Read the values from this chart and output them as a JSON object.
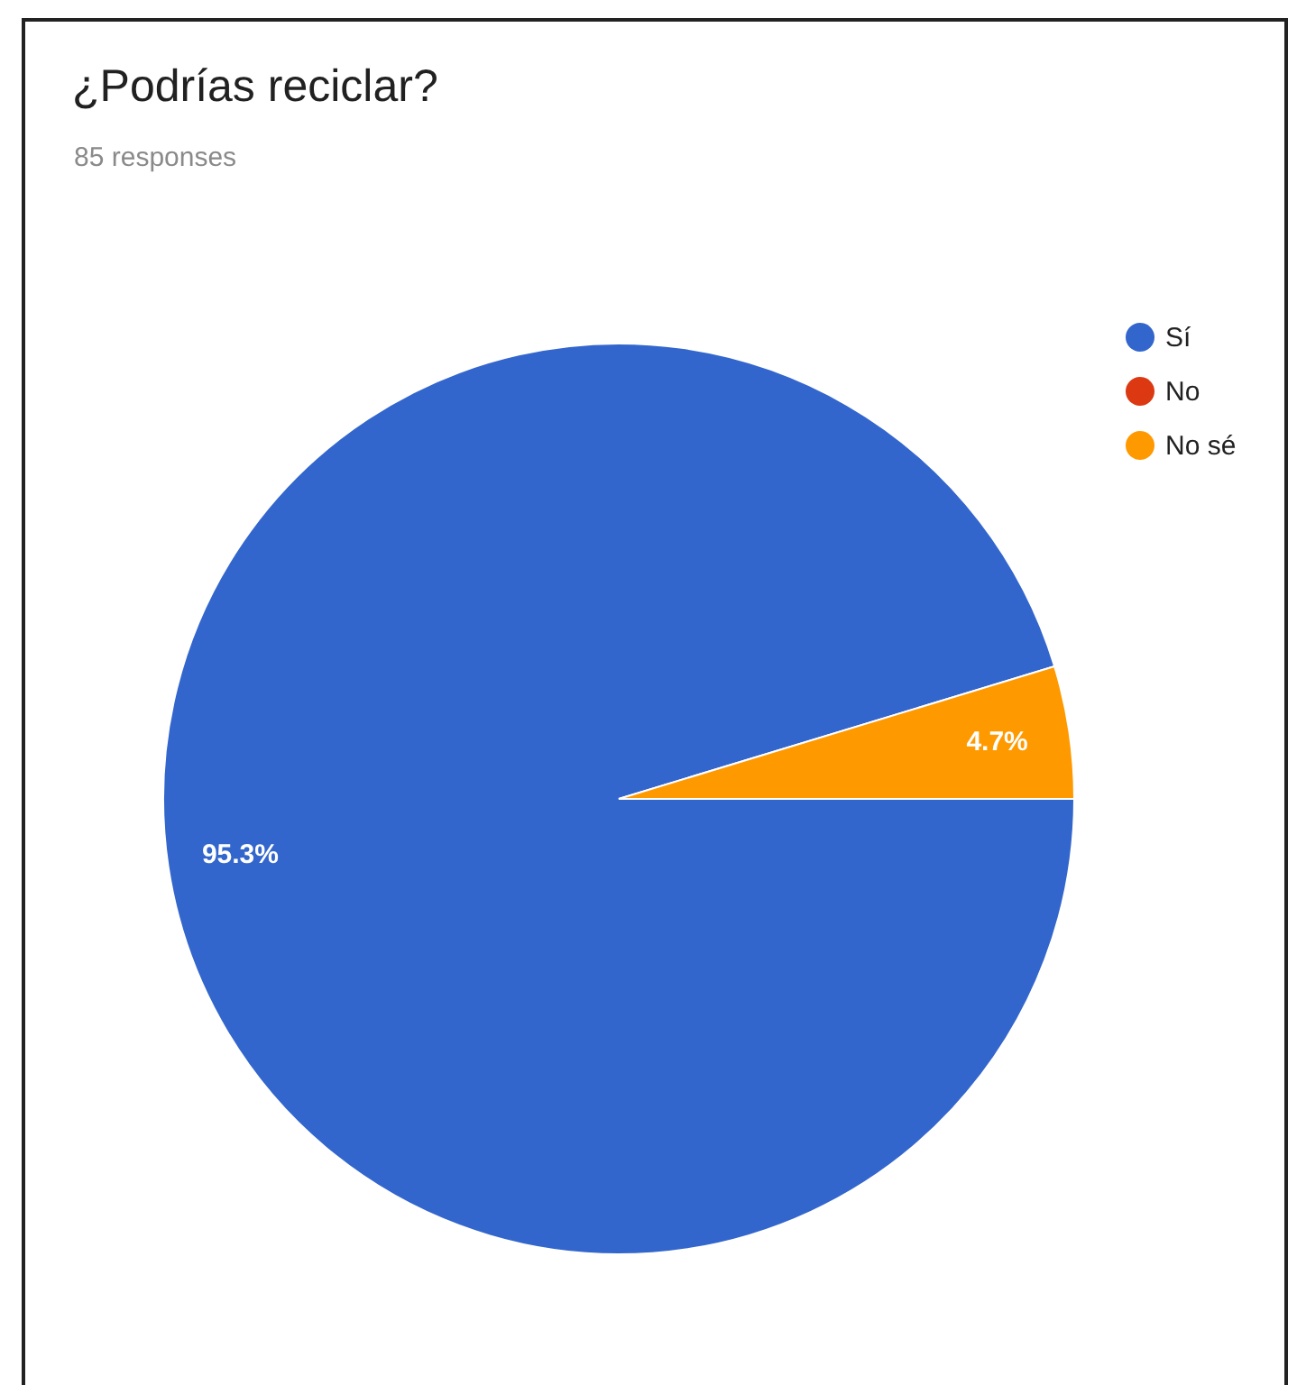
{
  "chart_data": {
    "type": "pie",
    "title": "¿Podrías reciclar?",
    "subtitle": "85 responses",
    "categories": [
      "Sí",
      "No",
      "No sé"
    ],
    "values": [
      95.3,
      0,
      4.7
    ],
    "colors": [
      "#3366cc",
      "#dc3912",
      "#ff9900"
    ],
    "value_labels": [
      "95.3%",
      null,
      "4.7%"
    ],
    "legend": "top right"
  }
}
